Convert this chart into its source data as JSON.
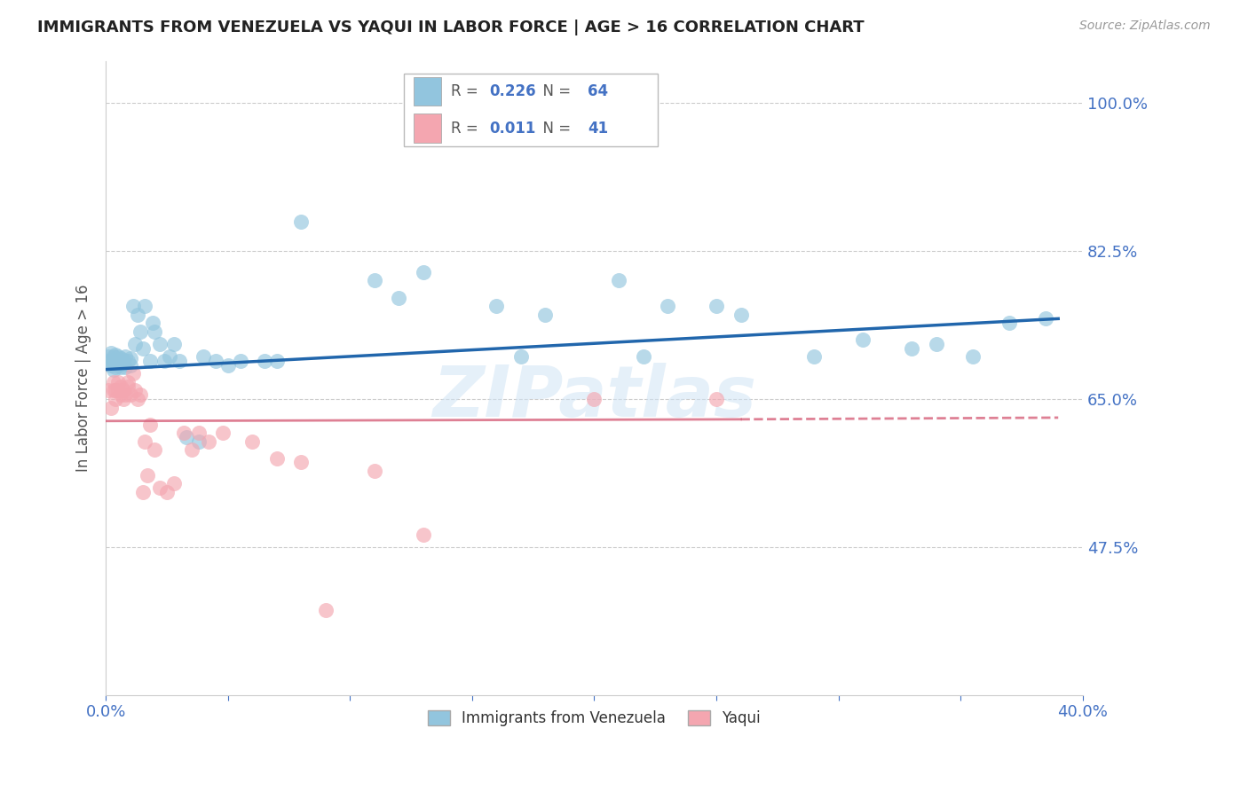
{
  "title": "IMMIGRANTS FROM VENEZUELA VS YAQUI IN LABOR FORCE | AGE > 16 CORRELATION CHART",
  "source": "Source: ZipAtlas.com",
  "ylabel": "In Labor Force | Age > 16",
  "xlim": [
    0.0,
    0.4
  ],
  "ylim": [
    0.3,
    1.05
  ],
  "yticks": [
    0.475,
    0.65,
    0.825,
    1.0
  ],
  "ytick_labels": [
    "47.5%",
    "65.0%",
    "82.5%",
    "100.0%"
  ],
  "xticks": [
    0.0,
    0.05,
    0.1,
    0.15,
    0.2,
    0.25,
    0.3,
    0.35,
    0.4
  ],
  "xtick_labels": [
    "0.0%",
    "",
    "",
    "",
    "",
    "",
    "",
    "",
    "40.0%"
  ],
  "series1_label": "Immigrants from Venezuela",
  "series1_R": "0.226",
  "series1_N": "64",
  "series1_color": "#92c5de",
  "series1_line_color": "#2166ac",
  "series2_label": "Yaqui",
  "series2_R": "0.011",
  "series2_N": "41",
  "series2_color": "#f4a6b0",
  "series2_line_color": "#d6607a",
  "background_color": "#ffffff",
  "grid_color": "#cccccc",
  "watermark": "ZIPatlas",
  "series1_x": [
    0.001,
    0.001,
    0.002,
    0.002,
    0.002,
    0.003,
    0.003,
    0.003,
    0.004,
    0.004,
    0.004,
    0.005,
    0.005,
    0.005,
    0.006,
    0.006,
    0.007,
    0.007,
    0.008,
    0.008,
    0.009,
    0.01,
    0.01,
    0.011,
    0.012,
    0.013,
    0.014,
    0.015,
    0.016,
    0.018,
    0.019,
    0.02,
    0.022,
    0.024,
    0.026,
    0.028,
    0.03,
    0.033,
    0.038,
    0.04,
    0.045,
    0.05,
    0.055,
    0.065,
    0.07,
    0.08,
    0.11,
    0.12,
    0.13,
    0.16,
    0.17,
    0.18,
    0.21,
    0.22,
    0.23,
    0.25,
    0.26,
    0.29,
    0.31,
    0.33,
    0.34,
    0.355,
    0.37,
    0.385
  ],
  "series1_y": [
    0.695,
    0.7,
    0.69,
    0.695,
    0.705,
    0.685,
    0.692,
    0.7,
    0.688,
    0.695,
    0.702,
    0.69,
    0.695,
    0.7,
    0.688,
    0.698,
    0.692,
    0.696,
    0.688,
    0.7,
    0.695,
    0.69,
    0.698,
    0.76,
    0.715,
    0.75,
    0.73,
    0.71,
    0.76,
    0.695,
    0.74,
    0.73,
    0.715,
    0.695,
    0.7,
    0.715,
    0.695,
    0.605,
    0.6,
    0.7,
    0.695,
    0.69,
    0.695,
    0.695,
    0.695,
    0.86,
    0.79,
    0.77,
    0.8,
    0.76,
    0.7,
    0.75,
    0.79,
    0.7,
    0.76,
    0.76,
    0.75,
    0.7,
    0.72,
    0.71,
    0.715,
    0.7,
    0.74,
    0.745
  ],
  "series2_x": [
    0.001,
    0.002,
    0.003,
    0.003,
    0.004,
    0.004,
    0.005,
    0.005,
    0.006,
    0.006,
    0.007,
    0.007,
    0.008,
    0.009,
    0.009,
    0.01,
    0.011,
    0.012,
    0.013,
    0.014,
    0.015,
    0.016,
    0.017,
    0.018,
    0.02,
    0.022,
    0.025,
    0.028,
    0.032,
    0.035,
    0.038,
    0.042,
    0.048,
    0.06,
    0.07,
    0.08,
    0.09,
    0.11,
    0.13,
    0.2,
    0.25
  ],
  "series2_y": [
    0.66,
    0.64,
    0.66,
    0.67,
    0.65,
    0.66,
    0.66,
    0.67,
    0.655,
    0.665,
    0.65,
    0.66,
    0.655,
    0.665,
    0.67,
    0.655,
    0.68,
    0.66,
    0.65,
    0.655,
    0.54,
    0.6,
    0.56,
    0.62,
    0.59,
    0.545,
    0.54,
    0.55,
    0.61,
    0.59,
    0.61,
    0.6,
    0.61,
    0.6,
    0.58,
    0.575,
    0.4,
    0.565,
    0.49,
    0.65,
    0.65
  ]
}
